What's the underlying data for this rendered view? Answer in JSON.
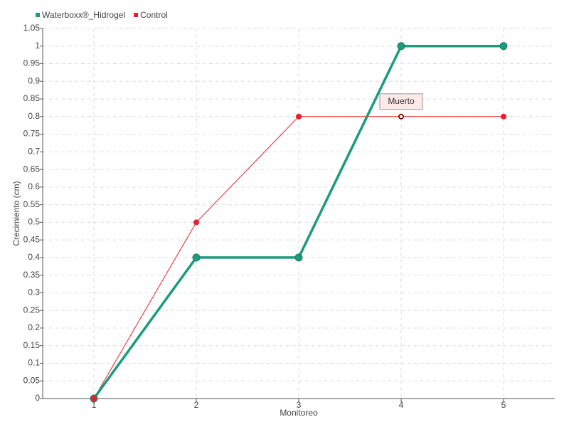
{
  "chart_data": {
    "type": "line",
    "x_label": "Monitoreo",
    "y_label": "Crecimiento (cm)",
    "categories": [
      "1",
      "2",
      "3",
      "4",
      "5"
    ],
    "series": [
      {
        "name": "Waterboxx®_Hidrogel",
        "color": "#1a9c7c",
        "values": [
          0,
          0.4,
          0.4,
          1,
          1
        ]
      },
      {
        "name": "Control",
        "color": "#e8202a",
        "values": [
          0,
          0.5,
          0.8,
          0.8,
          0.8
        ]
      }
    ],
    "ylim": [
      0,
      1.05
    ],
    "yticks": [
      0,
      0.05,
      0.1,
      0.15,
      0.2,
      0.25,
      0.3,
      0.35,
      0.4,
      0.45,
      0.5,
      0.55,
      0.6,
      0.65,
      0.7,
      0.75,
      0.8,
      0.85,
      0.9,
      0.95,
      1,
      1.05
    ],
    "grid": true,
    "legend": "top-left",
    "annotation": "Muerto"
  }
}
